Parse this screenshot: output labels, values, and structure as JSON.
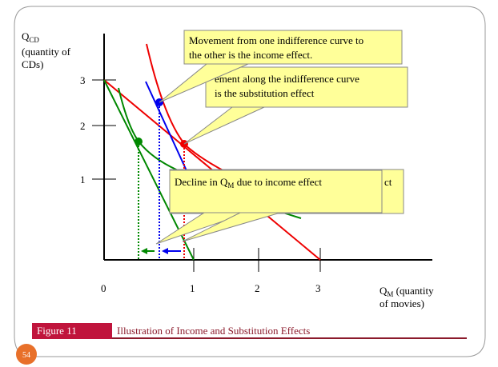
{
  "y_axis": {
    "symbol": "Q",
    "sub": "CD",
    "lines": [
      "(quantity of",
      "CDs)"
    ],
    "ticks": [
      "3",
      "2",
      "1"
    ]
  },
  "x_axis": {
    "symbol": "Q",
    "sub": "M",
    "first_line_rest": " (quantity",
    "second_line": "of movies)",
    "ticks": [
      "0",
      "1",
      "2",
      "3"
    ]
  },
  "callouts": {
    "income": [
      "Movement from one indifference curve to",
      "the other is the income effect."
    ],
    "substitution": [
      "ement along the indifference curve",
      "is the substitution effect"
    ],
    "hidden_tail": "ct",
    "decline": {
      "before": "Decline in Q",
      "sub": "M",
      "after": " due to income effect"
    }
  },
  "figure": {
    "label": "Figure 11",
    "caption": "Illustration of Income and Substitution Effects"
  },
  "page_number": "54"
}
